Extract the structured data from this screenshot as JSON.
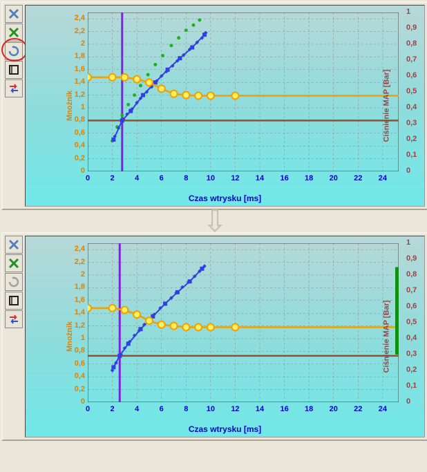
{
  "axis_labels": {
    "left": "Mnożnik",
    "right": "Ciśnienie MAP [Bar]",
    "bottom": "Czas wtrysku [ms]"
  },
  "x_ticks": [
    0,
    2,
    4,
    6,
    8,
    10,
    12,
    14,
    16,
    18,
    20,
    22,
    24
  ],
  "left_ticks": [
    0,
    0.2,
    0.4,
    0.6,
    0.8,
    1,
    1.2,
    1.4,
    1.6,
    1.8,
    2,
    2.2,
    2.4
  ],
  "right_ticks": [
    0,
    0.1,
    0.2,
    0.3,
    0.4,
    0.5,
    0.6,
    0.7,
    0.8,
    0.9,
    1
  ],
  "x_range": [
    0,
    25.3
  ],
  "left_range": [
    0,
    2.5
  ],
  "right_range": [
    0,
    1
  ],
  "colors": {
    "left_axis": "#e08000",
    "right_axis": "#a04040",
    "bottom_axis": "#0000d0",
    "orange_line": "#f0a000",
    "orange_marker_fill": "#fff060",
    "blue_scatter": "#3040e0",
    "green_scatter": "#20b020",
    "purple_line": "#8020e0",
    "brown_line": "#905030",
    "grid": "#888888",
    "border": "#404040",
    "green_bar": "#109010"
  },
  "chart_top": {
    "orange_line": [
      [
        0,
        1.48
      ],
      [
        2,
        1.48
      ],
      [
        3,
        1.48
      ],
      [
        4,
        1.45
      ],
      [
        5,
        1.4
      ],
      [
        6,
        1.3
      ],
      [
        7,
        1.22
      ],
      [
        8,
        1.2
      ],
      [
        9,
        1.19
      ],
      [
        10,
        1.19
      ],
      [
        12,
        1.19
      ],
      [
        25.3,
        1.19
      ]
    ],
    "brown_y": 0.8,
    "purple_x": 2.8,
    "blue_line": [
      [
        2.1,
        0.5
      ],
      [
        2.8,
        0.8
      ],
      [
        3.5,
        0.95
      ],
      [
        4.5,
        1.2
      ],
      [
        5.5,
        1.4
      ],
      [
        6.5,
        1.6
      ],
      [
        7.5,
        1.78
      ],
      [
        8.5,
        1.95
      ],
      [
        9.5,
        2.15
      ]
    ],
    "blue_scatter": [
      [
        2.2,
        0.55
      ],
      [
        2.5,
        0.68
      ],
      [
        2.9,
        0.82
      ],
      [
        3.2,
        0.9
      ],
      [
        3.6,
        0.98
      ],
      [
        4.0,
        1.08
      ],
      [
        4.3,
        1.15
      ],
      [
        4.8,
        1.25
      ],
      [
        5.2,
        1.33
      ],
      [
        5.6,
        1.42
      ],
      [
        6.0,
        1.5
      ],
      [
        6.4,
        1.57
      ],
      [
        6.9,
        1.66
      ],
      [
        7.3,
        1.74
      ],
      [
        7.8,
        1.83
      ],
      [
        8.3,
        1.92
      ],
      [
        8.9,
        2.03
      ],
      [
        9.3,
        2.1
      ],
      [
        9.6,
        2.18
      ]
    ],
    "green_scatter": [
      [
        2.0,
        0.48
      ],
      [
        2.4,
        0.7
      ],
      [
        2.8,
        0.88
      ],
      [
        3.3,
        1.05
      ],
      [
        3.8,
        1.2
      ],
      [
        4.3,
        1.35
      ],
      [
        4.9,
        1.52
      ],
      [
        5.5,
        1.68
      ],
      [
        6.1,
        1.82
      ],
      [
        6.8,
        1.98
      ],
      [
        7.4,
        2.1
      ],
      [
        8.0,
        2.22
      ],
      [
        8.6,
        2.3
      ],
      [
        9.1,
        2.38
      ]
    ],
    "has_red_circle": true,
    "has_green_bar": false
  },
  "chart_bottom": {
    "orange_line": [
      [
        0,
        1.48
      ],
      [
        2,
        1.48
      ],
      [
        3,
        1.45
      ],
      [
        4,
        1.38
      ],
      [
        5,
        1.28
      ],
      [
        6,
        1.22
      ],
      [
        7,
        1.2
      ],
      [
        8,
        1.18
      ],
      [
        9,
        1.18
      ],
      [
        10,
        1.18
      ],
      [
        12,
        1.18
      ],
      [
        25.3,
        1.18
      ]
    ],
    "brown_y": 0.73,
    "purple_x": 2.6,
    "blue_line": [
      [
        2.1,
        0.55
      ],
      [
        2.6,
        0.73
      ],
      [
        3.3,
        0.92
      ],
      [
        4.3,
        1.15
      ],
      [
        5.3,
        1.35
      ],
      [
        6.3,
        1.55
      ],
      [
        7.3,
        1.73
      ],
      [
        8.3,
        1.9
      ],
      [
        9.3,
        2.1
      ]
    ],
    "blue_scatter": [
      [
        2.0,
        0.5
      ],
      [
        2.3,
        0.62
      ],
      [
        2.7,
        0.75
      ],
      [
        3.0,
        0.85
      ],
      [
        3.4,
        0.95
      ],
      [
        3.8,
        1.05
      ],
      [
        4.2,
        1.13
      ],
      [
        4.6,
        1.22
      ],
      [
        5.0,
        1.3
      ],
      [
        5.4,
        1.38
      ],
      [
        5.9,
        1.48
      ],
      [
        6.3,
        1.55
      ],
      [
        6.8,
        1.64
      ],
      [
        7.2,
        1.72
      ],
      [
        7.7,
        1.81
      ],
      [
        8.2,
        1.89
      ],
      [
        8.7,
        1.98
      ],
      [
        9.1,
        2.06
      ],
      [
        9.5,
        2.14
      ]
    ],
    "green_scatter": [],
    "has_red_circle": false,
    "has_green_bar": true,
    "syringe_disabled": true
  },
  "tool_icons": [
    {
      "name": "close-icon",
      "color": "#6090d0"
    },
    {
      "name": "green-x-icon",
      "color": "#30a030"
    },
    {
      "name": "refresh-syringe-icon",
      "color": "#6090d0"
    },
    {
      "name": "black-path-icon",
      "color": "#202020"
    },
    {
      "name": "red-blue-swap-icon",
      "color": "#d03030"
    }
  ]
}
